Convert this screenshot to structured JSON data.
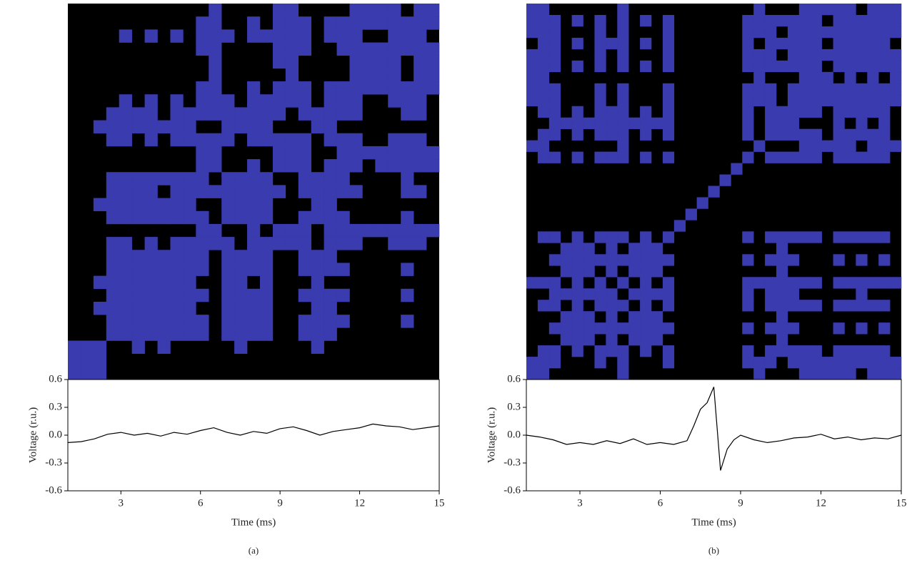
{
  "chart_data": [
    {
      "type": "line",
      "panel_label": "(a)",
      "xlabel": "Time (ms)",
      "ylabel": "Voltage (r.u.)",
      "recurrence_color": "#3b3bb0",
      "background": "#000000",
      "x": [
        1,
        1.5,
        2,
        2.5,
        3,
        3.5,
        4,
        4.5,
        5,
        5.5,
        6,
        6.5,
        7,
        7.5,
        8,
        8.5,
        9,
        9.5,
        10,
        10.5,
        11,
        11.5,
        12,
        12.5,
        13,
        13.5,
        14,
        14.5,
        15
      ],
      "series": [
        {
          "color": "#000000",
          "values": [
            -0.08,
            -0.07,
            -0.04,
            0.01,
            0.03,
            0.0,
            0.02,
            -0.01,
            0.03,
            0.01,
            0.05,
            0.08,
            0.03,
            0.0,
            0.04,
            0.02,
            0.07,
            0.09,
            0.05,
            0.0,
            0.04,
            0.06,
            0.08,
            0.12,
            0.1,
            0.09,
            0.06,
            0.08,
            0.1
          ]
        }
      ],
      "xlim": [
        1,
        15
      ],
      "xticks": [
        3,
        6,
        9,
        12,
        15
      ],
      "ylim": [
        -0.6,
        0.6
      ],
      "yticks": [
        -0.6,
        -0.3,
        {
          "value": 0,
          "label": "0.0"
        },
        0.3,
        0.6
      ]
    },
    {
      "type": "line",
      "panel_label": "(b)",
      "xlabel": "Time (ms)",
      "ylabel": "Voltage (r.u.)",
      "recurrence_color": "#3b3bb0",
      "background": "#000000",
      "x": [
        1,
        1.5,
        2,
        2.5,
        3,
        3.5,
        4,
        4.5,
        5,
        5.5,
        6,
        6.5,
        7,
        7.25,
        7.5,
        7.75,
        8,
        8.25,
        8.5,
        8.75,
        9,
        9.5,
        10,
        10.5,
        11,
        11.5,
        12,
        12.5,
        13,
        13.5,
        14,
        14.5,
        15
      ],
      "series": [
        {
          "color": "#000000",
          "values": [
            0.0,
            -0.02,
            -0.05,
            -0.1,
            -0.08,
            -0.1,
            -0.06,
            -0.09,
            -0.04,
            -0.1,
            -0.08,
            -0.1,
            -0.06,
            0.1,
            0.28,
            0.35,
            0.52,
            -0.38,
            -0.15,
            -0.05,
            0.0,
            -0.05,
            -0.08,
            -0.06,
            -0.03,
            -0.02,
            0.01,
            -0.04,
            -0.02,
            -0.05,
            -0.03,
            -0.04,
            0.0
          ]
        }
      ],
      "xlim": [
        1,
        15
      ],
      "xticks": [
        3,
        6,
        9,
        12,
        15
      ],
      "ylim": [
        -0.6,
        0.6
      ],
      "yticks": [
        -0.6,
        -0.3,
        {
          "value": 0,
          "label": "0.0"
        },
        0.3,
        0.6
      ]
    }
  ]
}
